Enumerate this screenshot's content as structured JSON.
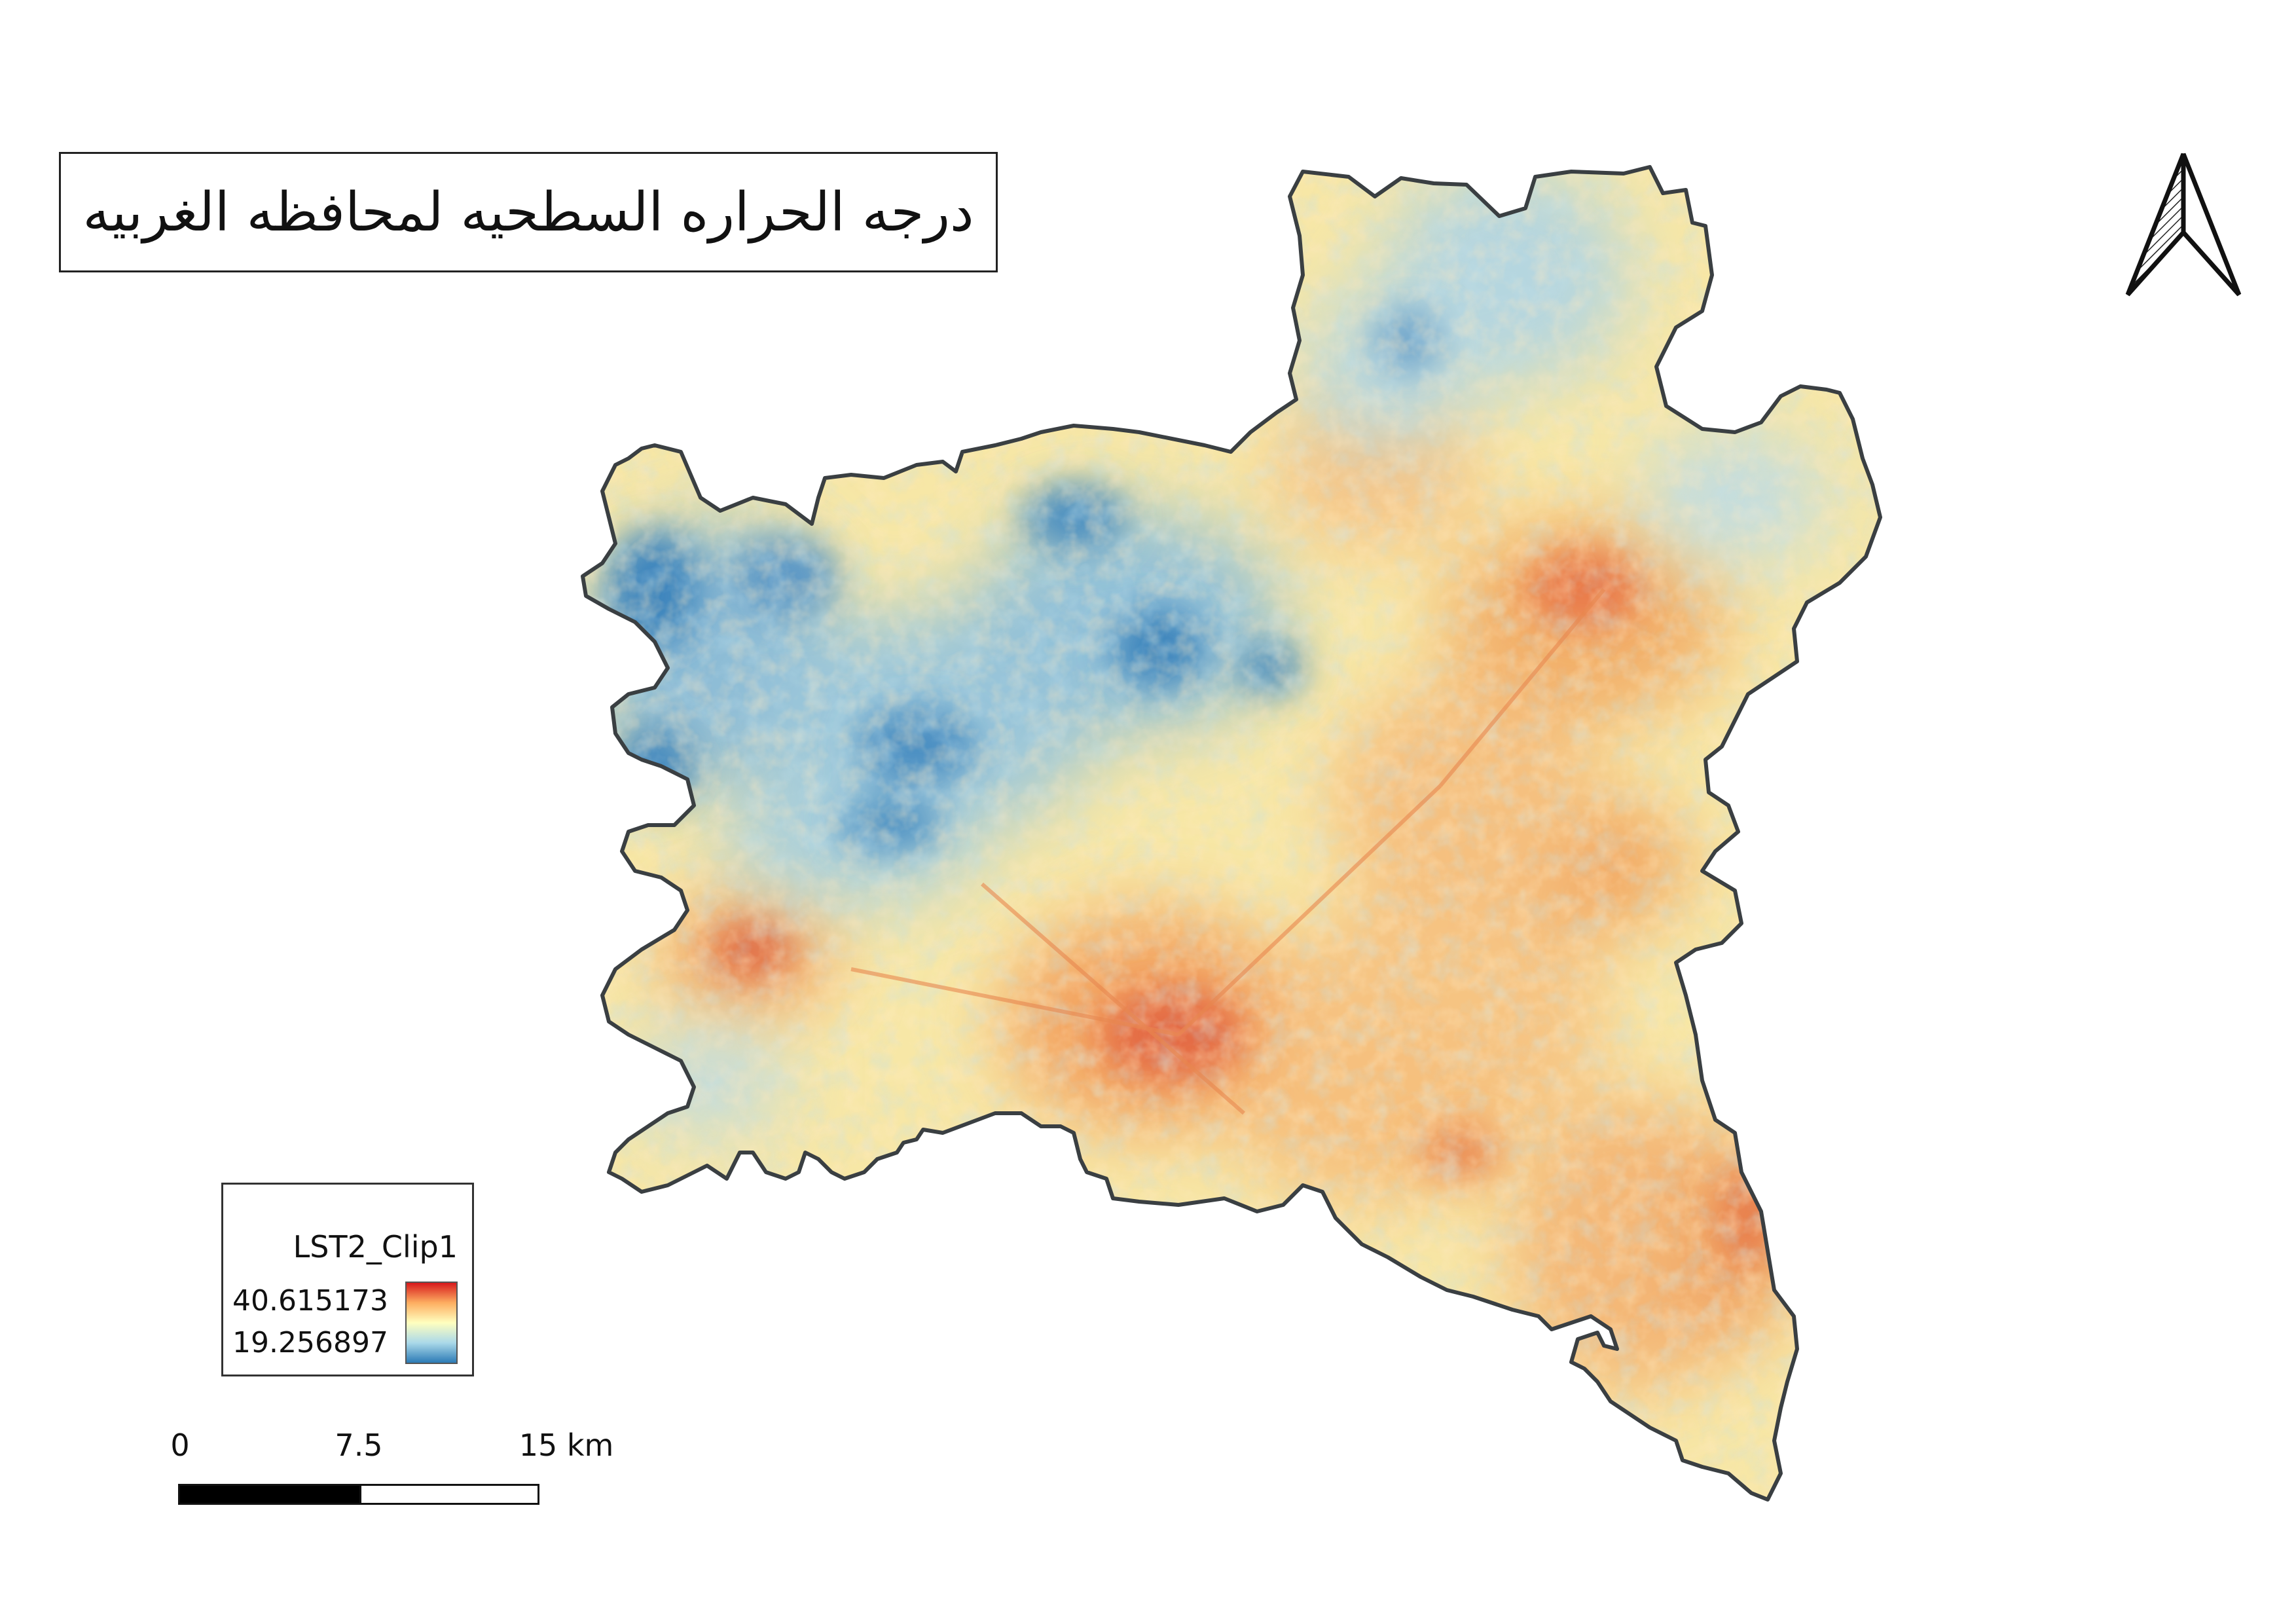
{
  "map": {
    "title": "درجه الحراره السطحيه لمحافظه الغربيه",
    "legend": {
      "layer_name": "LST2_Clip1",
      "max_value": "40.615173",
      "min_value": "19.256897",
      "colors": [
        "#d7191c",
        "#fdae61",
        "#ffffbf",
        "#abd9e9",
        "#2c7bb6"
      ]
    },
    "scalebar": {
      "labels": [
        "0",
        "7.5",
        "15 km"
      ]
    },
    "north_arrow": "north-arrow-icon",
    "border_color": "#3a3f42"
  }
}
